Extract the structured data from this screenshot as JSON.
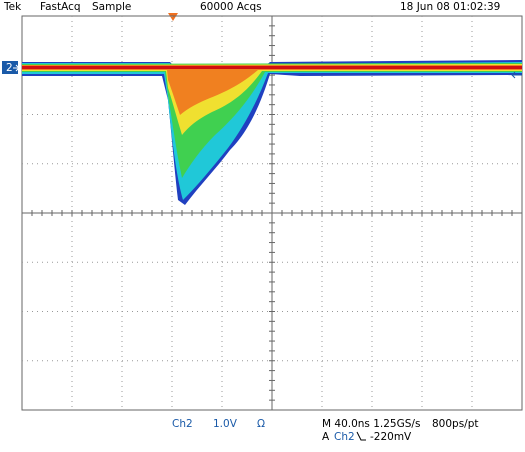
{
  "header": {
    "brand": "Tek",
    "mode": "FastAcq",
    "acq_mode": "Sample",
    "acq_count": "60000 Acqs",
    "timestamp": "18 Jun 08 01:02:39"
  },
  "channel_marker": "2",
  "footer": {
    "channel": "Ch2",
    "scale": "1.0V",
    "impedance": "Ω",
    "timebase": "M 40.0ns 1.25GS/s",
    "resolution": "800ps/pt",
    "trigger": {
      "label": "A",
      "source": "Ch2",
      "level": "-220mV"
    }
  }
}
